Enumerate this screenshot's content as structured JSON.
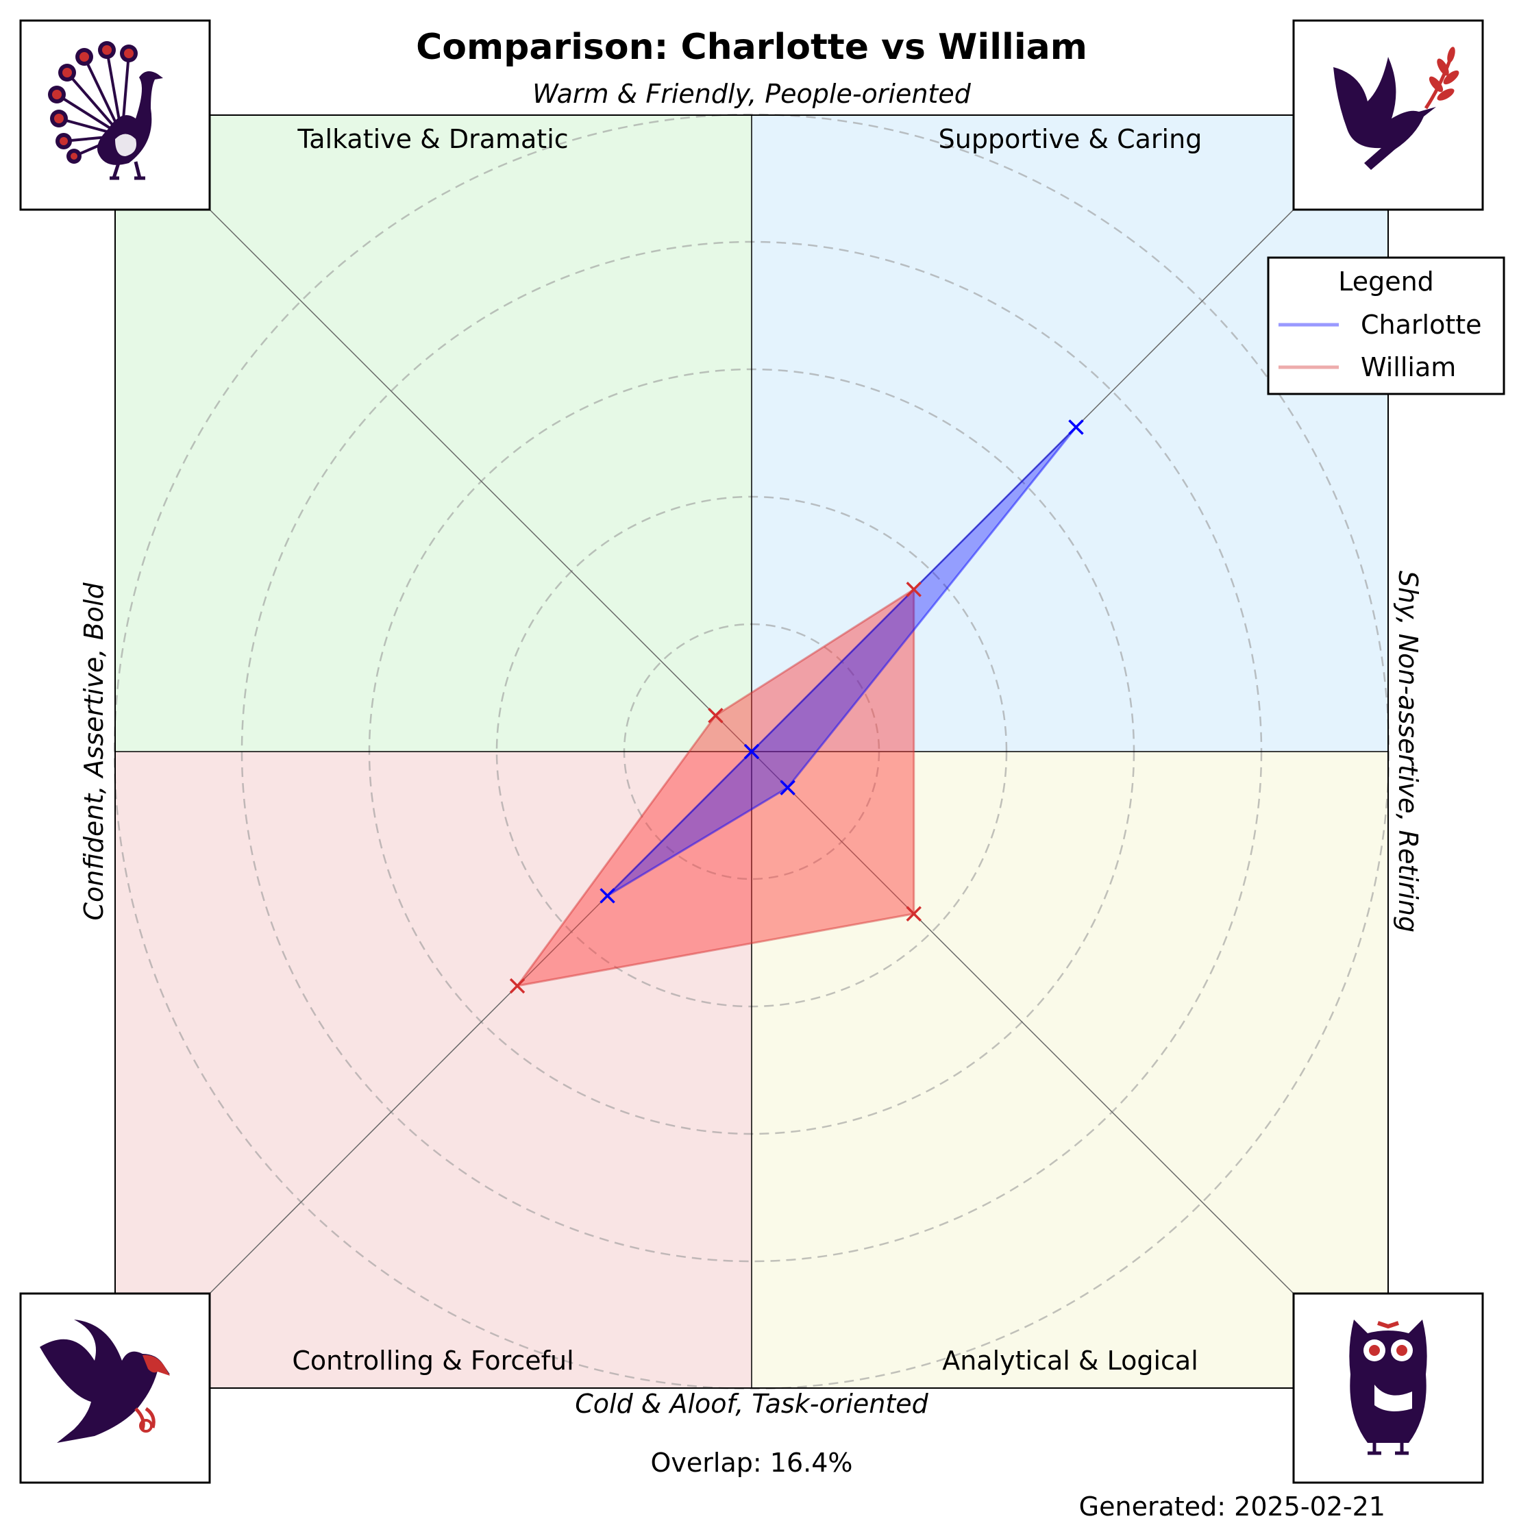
{
  "chart_data": {
    "type": "radar",
    "title": "Comparison: Charlotte vs William",
    "axis_labels": {
      "top": "Warm & Friendly, People-oriented",
      "bottom": "Cold & Aloof, Task-oriented",
      "left": "Confident, Assertive, Bold",
      "right": "Shy, Non-assertive, Retiring"
    },
    "quadrants": [
      {
        "position": "top-left",
        "label": "Talkative & Dramatic",
        "color": "#e6f9e6",
        "icon": "peacock-icon"
      },
      {
        "position": "top-right",
        "label": "Supportive & Caring",
        "color": "#e4f3fd",
        "icon": "dove-icon"
      },
      {
        "position": "bottom-left",
        "label": "Controlling & Forceful",
        "color": "#f9e4e4",
        "icon": "eagle-icon"
      },
      {
        "position": "bottom-right",
        "label": "Analytical & Logical",
        "color": "#fafae9",
        "icon": "owl-icon"
      }
    ],
    "categories": [
      "Supportive & Caring",
      "Analytical & Logical",
      "Controlling & Forceful",
      "Talkative & Dramatic"
    ],
    "max_value": 10,
    "series": [
      {
        "name": "Charlotte",
        "color": "#0000ff",
        "fill": "rgba(0,0,255,0.35)",
        "values": [
          7.2,
          0.8,
          3.2,
          0.0
        ]
      },
      {
        "name": "William",
        "color": "#d32f2f",
        "fill": "rgba(255,60,60,0.45)",
        "values": [
          3.6,
          3.6,
          5.2,
          0.8
        ]
      }
    ],
    "grid": "dashed concentric circles",
    "legend": {
      "title": "Legend",
      "placement": "top-right"
    },
    "overlap_text": "Overlap: 16.4%",
    "generated_text": "Generated: 2025-02-21"
  }
}
